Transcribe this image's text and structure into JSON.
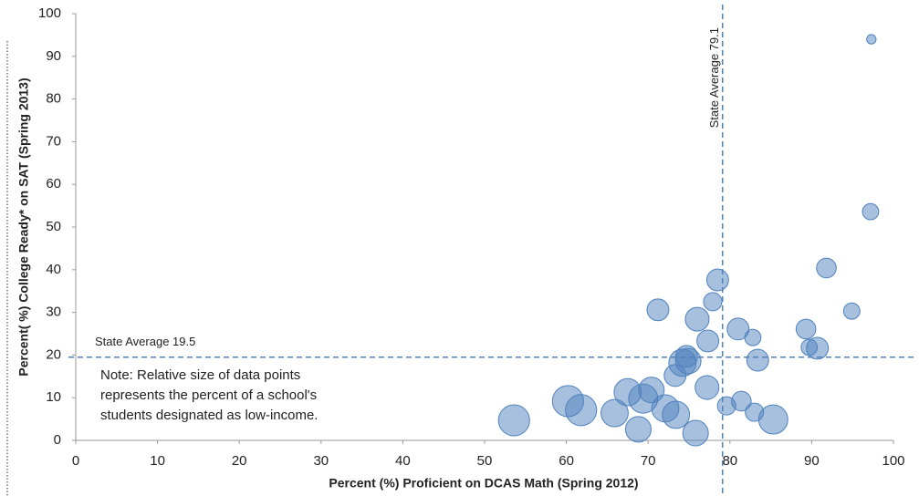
{
  "chart_data": {
    "type": "bubble",
    "xlabel": "Percent (%) Proficient on DCAS Math (Spring 2012)",
    "ylabel": "Percent( %) College Ready* on SAT (Spring 2013)",
    "x": [
      97.3,
      97.2,
      91.8,
      94.9,
      89.3,
      89.7,
      90.7,
      78.5,
      77.9,
      71.2,
      76.0,
      81.0,
      82.8,
      77.3,
      83.4,
      74.7,
      74.2,
      74.9,
      73.3,
      77.2,
      81.4,
      79.6,
      83.0,
      85.3,
      75.8,
      73.4,
      72.1,
      70.4,
      69.4,
      67.5,
      65.9,
      68.8,
      61.8,
      60.2,
      53.6
    ],
    "values": [
      94.0,
      53.6,
      40.4,
      30.3,
      26.1,
      21.8,
      21.6,
      37.6,
      32.5,
      30.6,
      28.4,
      26.1,
      24.1,
      23.3,
      18.8,
      19.7,
      18.2,
      18.6,
      15.2,
      12.4,
      9.2,
      8.1,
      6.6,
      4.9,
      1.7,
      6.0,
      7.5,
      11.8,
      9.8,
      11.3,
      6.4,
      2.6,
      7.1,
      9.2,
      4.7
    ],
    "sizes": [
      5,
      15,
      22,
      15,
      22,
      15,
      27,
      27,
      19,
      27,
      32,
      27,
      15,
      27,
      27,
      27,
      42,
      37,
      27,
      32,
      22,
      19,
      19,
      48,
      37,
      42,
      42,
      37,
      48,
      42,
      42,
      37,
      55,
      55,
      55
    ],
    "color": "#4f81bd",
    "xlim": [
      0,
      100
    ],
    "xticks": [
      0,
      10,
      20,
      30,
      40,
      50,
      60,
      70,
      80,
      90,
      100
    ],
    "ylim": [
      0,
      100
    ],
    "yticks": [
      0,
      10,
      20,
      30,
      40,
      50,
      60,
      70,
      80,
      90,
      100
    ],
    "grid": false,
    "reference_lines": [
      {
        "axis": "x",
        "value": 79.1,
        "label": "State Average 79.1"
      },
      {
        "axis": "y",
        "value": 19.5,
        "label": "State Average 19.5"
      }
    ],
    "note": [
      "Note: Relative size of data points",
      "represents the percent of a school's",
      "students designated as low-income."
    ]
  }
}
